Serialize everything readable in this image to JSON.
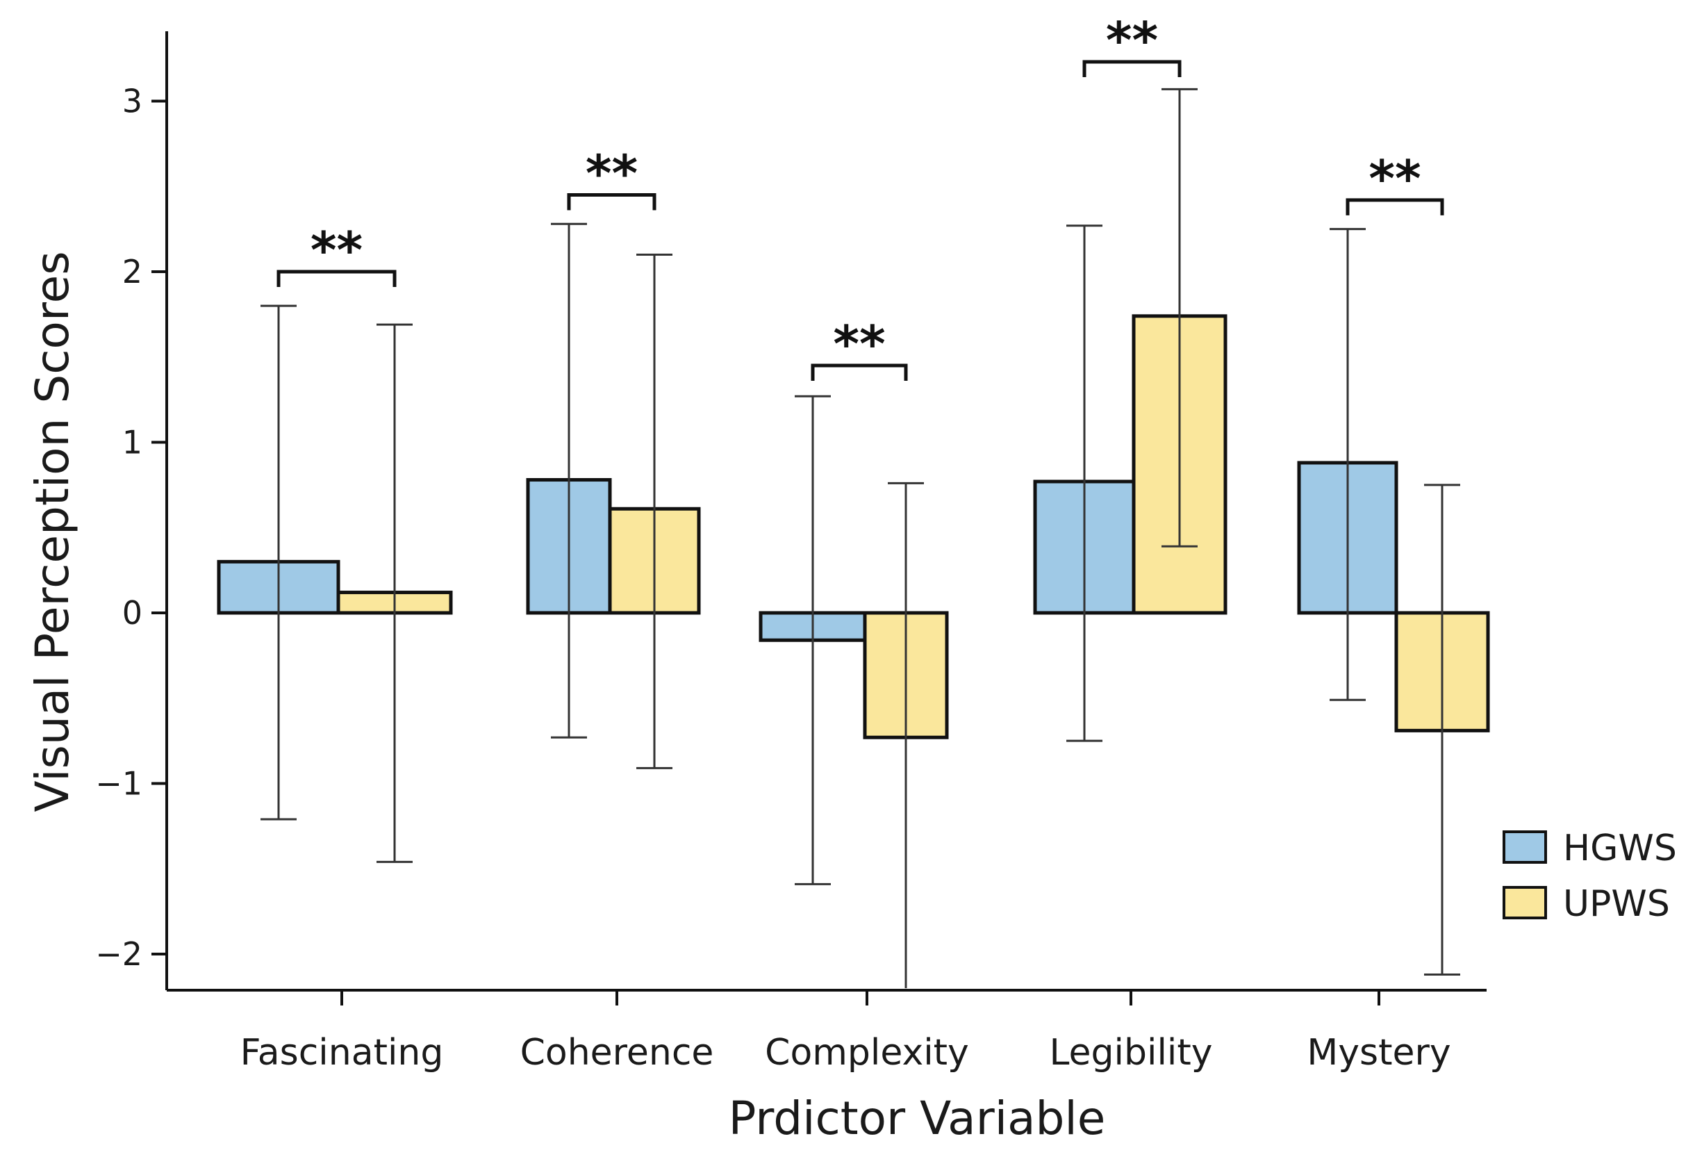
{
  "chart_data": {
    "type": "bar",
    "title": "",
    "xlabel": "Prdictor Variable",
    "ylabel": "Visual Perception Scores",
    "ylim": [
      -2.2,
      3.4
    ],
    "yticks": [
      -2,
      -1,
      0,
      1,
      2,
      3
    ],
    "ytick_labels": [
      "−2",
      "−1",
      "0",
      "1",
      "2",
      "3"
    ],
    "grid": false,
    "legend_position": "right",
    "categories": [
      "Fascinating",
      "Coherence",
      "Complexity",
      "Legibility",
      "Mystery"
    ],
    "series": [
      {
        "name": "HGWS",
        "color": "#9fc9e6",
        "values": [
          0.3,
          0.78,
          -0.16,
          0.77,
          0.88
        ],
        "error_low": [
          -1.21,
          -0.73,
          -1.59,
          -0.75,
          -0.51
        ],
        "error_high": [
          1.8,
          2.28,
          1.27,
          2.27,
          2.25
        ]
      },
      {
        "name": "UPWS",
        "color": "#fae79c",
        "values": [
          0.12,
          0.61,
          -0.73,
          1.74,
          -0.69
        ],
        "error_low": [
          -1.46,
          -0.91,
          -2.2,
          0.39,
          -2.12
        ],
        "error_high": [
          1.69,
          2.1,
          0.76,
          3.07,
          0.75
        ]
      }
    ],
    "significance": [
      {
        "category": "Fascinating",
        "label": "**",
        "level": 2.0
      },
      {
        "category": "Coherence",
        "label": "**",
        "level": 2.45
      },
      {
        "category": "Complexity",
        "label": "**",
        "level": 1.45
      },
      {
        "category": "Legibility",
        "label": "**",
        "level": 3.23
      },
      {
        "category": "Mystery",
        "label": "**",
        "level": 2.42
      }
    ]
  }
}
